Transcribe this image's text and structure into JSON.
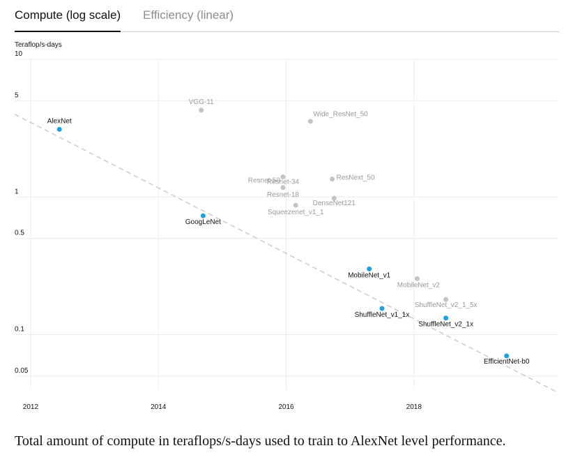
{
  "tabs": [
    {
      "label": "Compute (log scale)",
      "active": true
    },
    {
      "label": "Efficiency (linear)",
      "active": false
    }
  ],
  "caption": "Total amount of compute in teraflops/s-days used to train to AlexNet level performance.",
  "colors": {
    "highlight": "#1aa3dd",
    "other": "#c4c4c4",
    "highlight_label": "#111111",
    "other_label": "#9a9a9a",
    "grid": "#ececec",
    "trend": "#cccccc"
  },
  "chart_data": {
    "type": "scatter",
    "title": "",
    "xlabel": "",
    "ylabel": "Teraflop/s-days",
    "yscale": "log",
    "xlim": [
      2011.75,
      2020.25
    ],
    "ylim": [
      0.04,
      10
    ],
    "x_ticks": [
      2012,
      2014,
      2016,
      2018
    ],
    "x_tick_labels": [
      "2012",
      "2014",
      "2016",
      "2018"
    ],
    "y_ticks": [
      0.05,
      0.1,
      0.5,
      1,
      5,
      10
    ],
    "y_tick_labels": [
      "0.05",
      "0.1",
      "0.5",
      "1",
      "5",
      "10"
    ],
    "grid": true,
    "trend_line": {
      "x": [
        2011.75,
        2020.25
      ],
      "y": [
        3.99,
        0.038
      ]
    },
    "points": [
      {
        "name": "AlexNet",
        "x": 2012.45,
        "y": 3.1,
        "highlight": true
      },
      {
        "name": "VGG-11",
        "x": 2014.67,
        "y": 4.27,
        "highlight": false
      },
      {
        "name": "Wide_ResNet_50",
        "x": 2016.38,
        "y": 3.55,
        "highlight": false
      },
      {
        "name": "GoogLeNet",
        "x": 2014.7,
        "y": 0.73,
        "highlight": true
      },
      {
        "name": "Resnet-50",
        "x": 2015.95,
        "y": 1.4,
        "highlight": false
      },
      {
        "name": "Resnet-34",
        "x": 2015.95,
        "y": 1.4,
        "highlight": false
      },
      {
        "name": "Resnet-18",
        "x": 2015.95,
        "y": 1.17,
        "highlight": false
      },
      {
        "name": "ResNext_50",
        "x": 2016.72,
        "y": 1.35,
        "highlight": false
      },
      {
        "name": "DenseNet121",
        "x": 2016.75,
        "y": 0.98,
        "highlight": false
      },
      {
        "name": "Squeezenet_v1_1",
        "x": 2016.15,
        "y": 0.87,
        "highlight": false
      },
      {
        "name": "MobileNet_v1",
        "x": 2017.3,
        "y": 0.3,
        "highlight": true
      },
      {
        "name": "MobileNet_v2",
        "x": 2018.05,
        "y": 0.255,
        "highlight": false
      },
      {
        "name": "ShuffleNet_v2_1_5x",
        "x": 2018.5,
        "y": 0.18,
        "highlight": false
      },
      {
        "name": "ShuffleNet_v1_1x",
        "x": 2017.5,
        "y": 0.155,
        "highlight": true
      },
      {
        "name": "ShuffleNet_v2_1x",
        "x": 2018.5,
        "y": 0.132,
        "highlight": true
      },
      {
        "name": "EfficientNet-b0",
        "x": 2019.45,
        "y": 0.07,
        "highlight": true
      }
    ]
  }
}
